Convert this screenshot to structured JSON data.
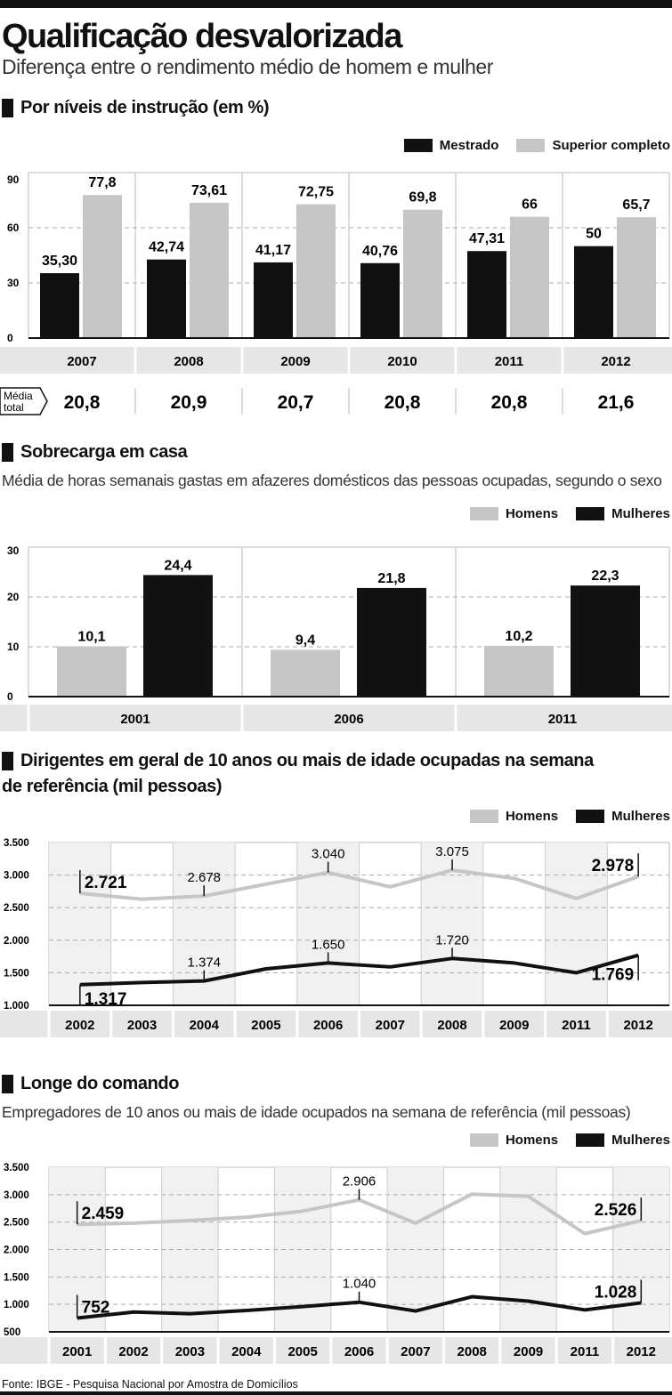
{
  "header": {
    "title": "Qualificação desvalorizada",
    "subtitle": "Diferença entre o rendimento médio de homem e mulher"
  },
  "colors": {
    "dark": "#111111",
    "light": "#c6c6c6"
  },
  "chart_data": [
    {
      "type": "bar",
      "title": "Por níveis de instrução (em %)",
      "categories": [
        "2007",
        "2008",
        "2009",
        "2010",
        "2011",
        "2012"
      ],
      "series": [
        {
          "name": "Mestrado",
          "values": [
            35.3,
            42.74,
            41.17,
            40.76,
            47.31,
            50
          ],
          "labels": [
            "35,30",
            "42,74",
            "41,17",
            "40,76",
            "47,31",
            "50"
          ]
        },
        {
          "name": "Superior completo",
          "values": [
            77.8,
            73.61,
            72.75,
            69.8,
            66,
            65.7
          ],
          "labels": [
            "77,8",
            "73,61",
            "72,75",
            "69,8",
            "66",
            "65,7"
          ]
        }
      ],
      "ylim": [
        0,
        90
      ],
      "yticks": [
        "0",
        "30",
        "60",
        "90"
      ],
      "media_label_1": "Média",
      "media_label_2": "total",
      "media_total": [
        "20,8",
        "20,9",
        "20,7",
        "20,8",
        "20,8",
        "21,6"
      ]
    },
    {
      "type": "bar",
      "title": "Sobrecarga em casa",
      "subtitle": "Média de horas semanais gastas em afazeres domésticos das pessoas ocupadas, segundo o sexo",
      "categories": [
        "2001",
        "2006",
        "2011"
      ],
      "series": [
        {
          "name": "Homens",
          "values": [
            10.1,
            9.4,
            10.2
          ],
          "labels": [
            "10,1",
            "9,4",
            "10,2"
          ]
        },
        {
          "name": "Mulheres",
          "values": [
            24.4,
            21.8,
            22.3
          ],
          "labels": [
            "24,4",
            "21,8",
            "22,3"
          ]
        }
      ],
      "ylim": [
        0,
        30
      ],
      "yticks": [
        "0",
        "10",
        "20",
        "30"
      ]
    },
    {
      "type": "line",
      "title_line1": "Dirigentes em geral de 10 anos ou mais de idade ocupadas na semana",
      "title_line2": "de referência (mil pessoas)",
      "categories": [
        "2002",
        "2003",
        "2004",
        "2005",
        "2006",
        "2007",
        "2008",
        "2009",
        "2011",
        "2012"
      ],
      "series": [
        {
          "name": "Homens",
          "values": [
            2721,
            2630,
            2678,
            2860,
            3040,
            2820,
            3075,
            2950,
            2640,
            2978
          ]
        },
        {
          "name": "Mulheres",
          "values": [
            1317,
            1350,
            1374,
            1560,
            1650,
            1590,
            1720,
            1650,
            1500,
            1769
          ]
        }
      ],
      "labels": [
        "2.721",
        "2.678",
        "3.040",
        "3.075",
        "2.978",
        "1.317",
        "1.374",
        "1.650",
        "1.720",
        "1.769"
      ],
      "ylim": [
        1000,
        3500
      ],
      "yticks": [
        "1.000",
        "1.500",
        "2.000",
        "2.500",
        "3.000",
        "3.500"
      ]
    },
    {
      "type": "line",
      "title": "Longe do comando",
      "subtitle": "Empregadores de 10 anos ou mais de idade ocupados na semana de referência (mil pessoas)",
      "categories": [
        "2001",
        "2002",
        "2003",
        "2004",
        "2005",
        "2006",
        "2007",
        "2008",
        "2009",
        "2011",
        "2012"
      ],
      "series": [
        {
          "name": "Homens",
          "values": [
            2459,
            2480,
            2530,
            2590,
            2700,
            2906,
            2480,
            3010,
            2970,
            2290,
            2526
          ]
        },
        {
          "name": "Mulheres",
          "values": [
            752,
            860,
            830,
            890,
            960,
            1040,
            880,
            1140,
            1060,
            900,
            1028
          ]
        }
      ],
      "labels": [
        "2.459",
        "2.906",
        "2.526",
        "752",
        "1.040",
        "1.028"
      ],
      "ylim": [
        500,
        3500
      ],
      "yticks": [
        "500",
        "1.000",
        "1.500",
        "2.000",
        "2.500",
        "3.000",
        "3.500"
      ]
    }
  ],
  "source": "Fonte: IBGE - Pesquisa Nacional por Amostra de Domicílios"
}
